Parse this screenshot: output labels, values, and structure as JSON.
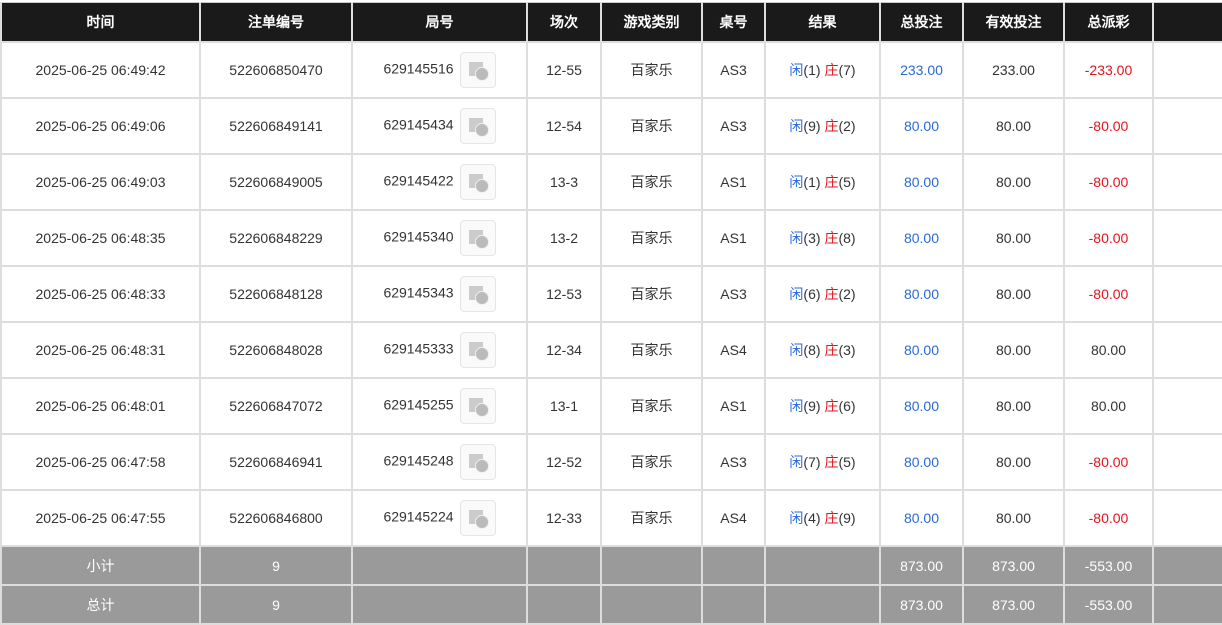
{
  "headers": [
    "时间",
    "注单编号",
    "局号",
    "场次",
    "游戏类别",
    "桌号",
    "结果",
    "总投注",
    "有效投注",
    "总派彩",
    ""
  ],
  "result_labels": {
    "player": "闲",
    "banker": "庄"
  },
  "rows": [
    {
      "time": "2025-06-25 06:49:42",
      "order": "522606850470",
      "round": "629145516",
      "session": "12-55",
      "game": "百家乐",
      "table": "AS3",
      "p": "(1)",
      "b": "(7)",
      "bet": "233.00",
      "valid": "233.00",
      "payout": "-233.00",
      "neg": true
    },
    {
      "time": "2025-06-25 06:49:06",
      "order": "522606849141",
      "round": "629145434",
      "session": "12-54",
      "game": "百家乐",
      "table": "AS3",
      "p": "(9)",
      "b": "(2)",
      "bet": "80.00",
      "valid": "80.00",
      "payout": "-80.00",
      "neg": true
    },
    {
      "time": "2025-06-25 06:49:03",
      "order": "522606849005",
      "round": "629145422",
      "session": "13-3",
      "game": "百家乐",
      "table": "AS1",
      "p": "(1)",
      "b": "(5)",
      "bet": "80.00",
      "valid": "80.00",
      "payout": "-80.00",
      "neg": true
    },
    {
      "time": "2025-06-25 06:48:35",
      "order": "522606848229",
      "round": "629145340",
      "session": "13-2",
      "game": "百家乐",
      "table": "AS1",
      "p": "(3)",
      "b": "(8)",
      "bet": "80.00",
      "valid": "80.00",
      "payout": "-80.00",
      "neg": true
    },
    {
      "time": "2025-06-25 06:48:33",
      "order": "522606848128",
      "round": "629145343",
      "session": "12-53",
      "game": "百家乐",
      "table": "AS3",
      "p": "(6)",
      "b": "(2)",
      "bet": "80.00",
      "valid": "80.00",
      "payout": "-80.00",
      "neg": true
    },
    {
      "time": "2025-06-25 06:48:31",
      "order": "522606848028",
      "round": "629145333",
      "session": "12-34",
      "game": "百家乐",
      "table": "AS4",
      "p": "(8)",
      "b": "(3)",
      "bet": "80.00",
      "valid": "80.00",
      "payout": "80.00",
      "neg": false
    },
    {
      "time": "2025-06-25 06:48:01",
      "order": "522606847072",
      "round": "629145255",
      "session": "13-1",
      "game": "百家乐",
      "table": "AS1",
      "p": "(9)",
      "b": "(6)",
      "bet": "80.00",
      "valid": "80.00",
      "payout": "80.00",
      "neg": false
    },
    {
      "time": "2025-06-25 06:47:58",
      "order": "522606846941",
      "round": "629145248",
      "session": "12-52",
      "game": "百家乐",
      "table": "AS3",
      "p": "(7)",
      "b": "(5)",
      "bet": "80.00",
      "valid": "80.00",
      "payout": "-80.00",
      "neg": true
    },
    {
      "time": "2025-06-25 06:47:55",
      "order": "522606846800",
      "round": "629145224",
      "session": "12-33",
      "game": "百家乐",
      "table": "AS4",
      "p": "(4)",
      "b": "(9)",
      "bet": "80.00",
      "valid": "80.00",
      "payout": "-80.00",
      "neg": true
    }
  ],
  "summary": [
    {
      "label": "小计",
      "count": "9",
      "bet": "873.00",
      "valid": "873.00",
      "payout": "-553.00"
    },
    {
      "label": "总计",
      "count": "9",
      "bet": "873.00",
      "valid": "873.00",
      "payout": "-553.00"
    }
  ],
  "colors": {
    "header_bg": "#1a1a1a",
    "blue": "#2a6ad8",
    "red": "#e3141e",
    "summary_bg": "#9a9a9a"
  }
}
